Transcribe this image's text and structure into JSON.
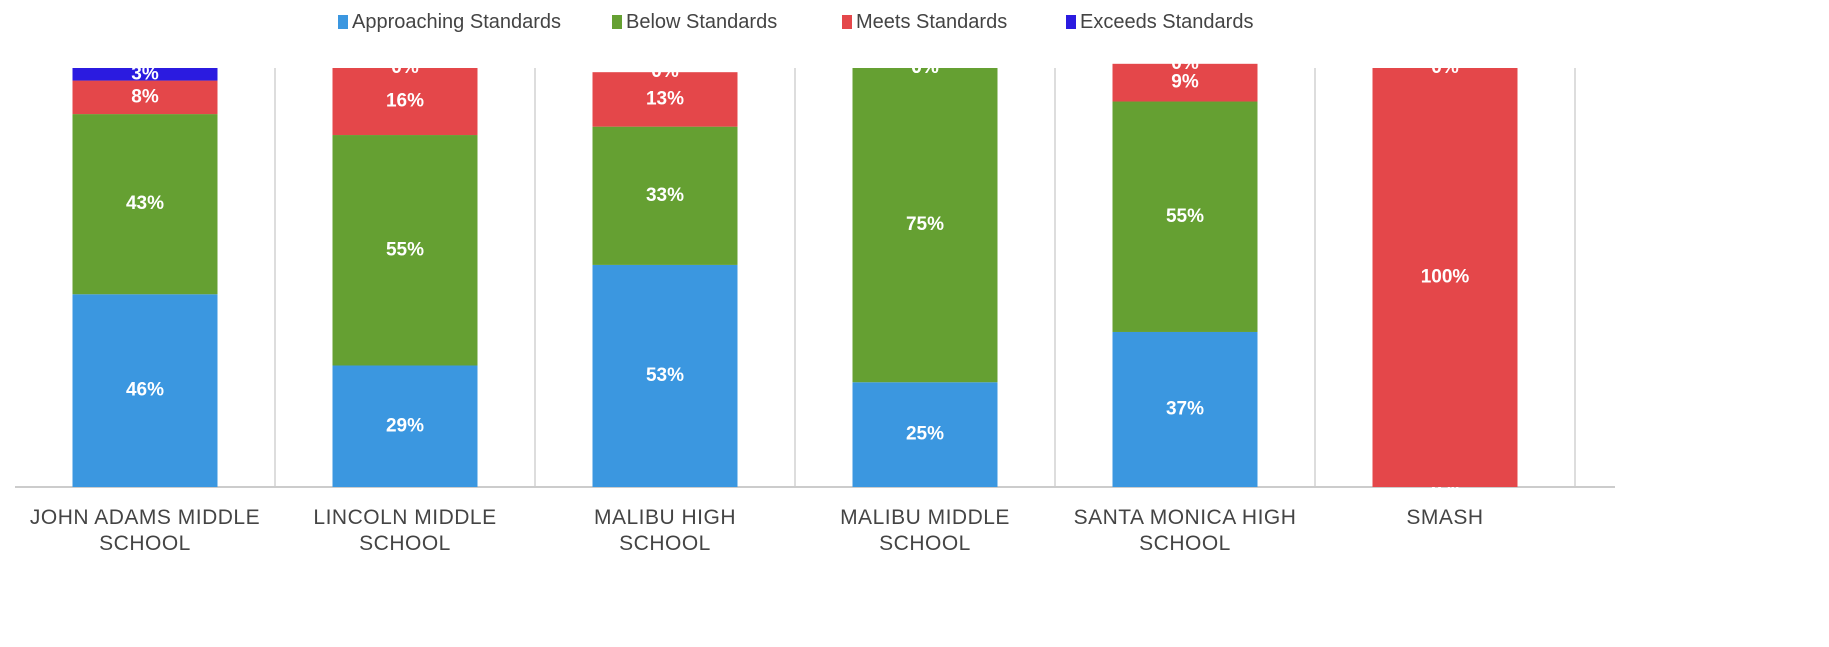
{
  "chart_data": {
    "type": "stacked_bar",
    "categories": [
      "JOHN ADAMS MIDDLE SCHOOL",
      "LINCOLN MIDDLE SCHOOL",
      "MALIBU HIGH SCHOOL",
      "MALIBU MIDDLE SCHOOL",
      "SANTA MONICA HIGH SCHOOL",
      "SMASH"
    ],
    "series": [
      {
        "name": "Approaching Standards",
        "color": "#3b97e0",
        "values": [
          46,
          29,
          53,
          25,
          37,
          0
        ],
        "value_labels": [
          "46%",
          "29%",
          "53%",
          "25%",
          "37%",
          "0%"
        ]
      },
      {
        "name": "Below Standards",
        "color": "#65a032",
        "values": [
          43,
          55,
          33,
          75,
          55,
          0
        ],
        "value_labels": [
          "43%",
          "55%",
          "33%",
          "75%",
          "55%",
          "0%"
        ]
      },
      {
        "name": "Meets Standards",
        "color": "#e4474a",
        "values": [
          8,
          16,
          13,
          0,
          9,
          100
        ],
        "value_labels": [
          "8%",
          "16%",
          "13%",
          "0%",
          "9%",
          "100%"
        ]
      },
      {
        "name": "Exceeds Standards",
        "color": "#2b1be0",
        "values": [
          3,
          0,
          0,
          0,
          0,
          0
        ],
        "value_labels": [
          "3%",
          "0%",
          "0%",
          "0%",
          "0%",
          "0%"
        ]
      }
    ],
    "ylim": [
      0,
      100
    ],
    "legend": "top"
  }
}
